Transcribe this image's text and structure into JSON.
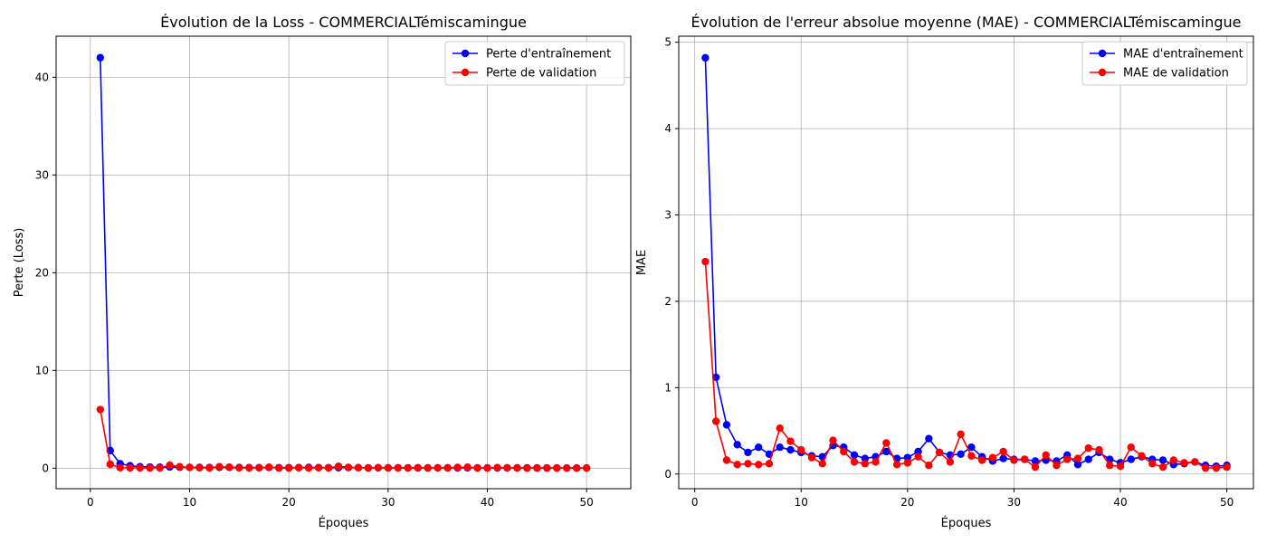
{
  "colors": {
    "train": "#0000ff",
    "validation": "#ff0000",
    "grid": "#b0b0b0",
    "legend_border": "#cccccc"
  },
  "chart_data": [
    {
      "type": "line",
      "title": "Évolution de la Loss - COMMERCIALTémiscamingue",
      "xlabel": "Époques",
      "ylabel": "Perte (Loss)",
      "xlim": [
        -3.45,
        54.45
      ],
      "ylim": [
        -2.1,
        44.2
      ],
      "xticks": [
        0,
        10,
        20,
        30,
        40,
        50
      ],
      "yticks": [
        0,
        10,
        20,
        30,
        40
      ],
      "grid": true,
      "legend_position": "top-right",
      "x": [
        1,
        2,
        3,
        4,
        5,
        6,
        7,
        8,
        9,
        10,
        11,
        12,
        13,
        14,
        15,
        16,
        17,
        18,
        19,
        20,
        21,
        22,
        23,
        24,
        25,
        26,
        27,
        28,
        29,
        30,
        31,
        32,
        33,
        34,
        35,
        36,
        37,
        38,
        39,
        40,
        41,
        42,
        43,
        44,
        45,
        46,
        47,
        48,
        49,
        50
      ],
      "series": [
        {
          "name": "Perte d'entraînement",
          "color": "#0000ff",
          "values": [
            42.0,
            1.8,
            0.45,
            0.25,
            0.15,
            0.12,
            0.1,
            0.12,
            0.1,
            0.08,
            0.08,
            0.07,
            0.08,
            0.08,
            0.07,
            0.06,
            0.06,
            0.07,
            0.05,
            0.05,
            0.06,
            0.08,
            0.06,
            0.05,
            0.05,
            0.06,
            0.06,
            0.04,
            0.04,
            0.04,
            0.04,
            0.04,
            0.03,
            0.03,
            0.04,
            0.03,
            0.03,
            0.04,
            0.03,
            0.03,
            0.03,
            0.03,
            0.03,
            0.03,
            0.02,
            0.02,
            0.02,
            0.02,
            0.02,
            0.02
          ]
        },
        {
          "name": "Perte de validation",
          "color": "#ff0000",
          "values": [
            6.0,
            0.4,
            0.05,
            0.03,
            0.03,
            0.02,
            0.03,
            0.3,
            0.15,
            0.08,
            0.05,
            0.03,
            0.15,
            0.1,
            0.04,
            0.03,
            0.04,
            0.1,
            0.02,
            0.02,
            0.05,
            0.02,
            0.05,
            0.03,
            0.2,
            0.08,
            0.05,
            0.02,
            0.06,
            0.03,
            0.03,
            0.02,
            0.05,
            0.02,
            0.04,
            0.03,
            0.08,
            0.1,
            0.02,
            0.01,
            0.06,
            0.04,
            0.03,
            0.01,
            0.03,
            0.02,
            0.02,
            0.01,
            0.01,
            0.01
          ]
        }
      ]
    },
    {
      "type": "line",
      "title": "Évolution de l'erreur absolue moyenne (MAE) - COMMERCIALTémiscamingue",
      "xlabel": "Époques",
      "ylabel": "MAE",
      "xlim": [
        -1.5,
        52.5
      ],
      "ylim": [
        -0.17,
        5.07
      ],
      "xticks": [
        0,
        10,
        20,
        30,
        40,
        50
      ],
      "yticks": [
        0,
        1,
        2,
        3,
        4,
        5
      ],
      "grid": true,
      "legend_position": "top-right",
      "x": [
        1,
        2,
        3,
        4,
        5,
        6,
        7,
        8,
        9,
        10,
        11,
        12,
        13,
        14,
        15,
        16,
        17,
        18,
        19,
        20,
        21,
        22,
        23,
        24,
        25,
        26,
        27,
        28,
        29,
        30,
        31,
        32,
        33,
        34,
        35,
        36,
        37,
        38,
        39,
        40,
        41,
        42,
        43,
        44,
        45,
        46,
        47,
        48,
        49,
        50
      ],
      "series": [
        {
          "name": "MAE d'entraînement",
          "color": "#0000ff",
          "values": [
            4.82,
            1.12,
            0.57,
            0.34,
            0.25,
            0.31,
            0.23,
            0.31,
            0.28,
            0.25,
            0.21,
            0.2,
            0.33,
            0.31,
            0.22,
            0.18,
            0.2,
            0.26,
            0.18,
            0.19,
            0.26,
            0.41,
            0.25,
            0.22,
            0.23,
            0.31,
            0.2,
            0.15,
            0.18,
            0.17,
            0.17,
            0.15,
            0.16,
            0.15,
            0.22,
            0.11,
            0.17,
            0.25,
            0.17,
            0.13,
            0.17,
            0.2,
            0.17,
            0.16,
            0.11,
            0.12,
            0.14,
            0.1,
            0.09,
            0.1
          ]
        },
        {
          "name": "MAE de validation",
          "color": "#ff0000",
          "values": [
            2.46,
            0.61,
            0.16,
            0.11,
            0.12,
            0.11,
            0.12,
            0.53,
            0.38,
            0.28,
            0.19,
            0.12,
            0.39,
            0.26,
            0.14,
            0.12,
            0.14,
            0.36,
            0.11,
            0.13,
            0.2,
            0.1,
            0.25,
            0.14,
            0.46,
            0.21,
            0.16,
            0.19,
            0.26,
            0.16,
            0.17,
            0.08,
            0.22,
            0.1,
            0.17,
            0.18,
            0.3,
            0.28,
            0.1,
            0.09,
            0.31,
            0.21,
            0.12,
            0.08,
            0.16,
            0.13,
            0.14,
            0.07,
            0.07,
            0.08
          ]
        }
      ]
    }
  ]
}
